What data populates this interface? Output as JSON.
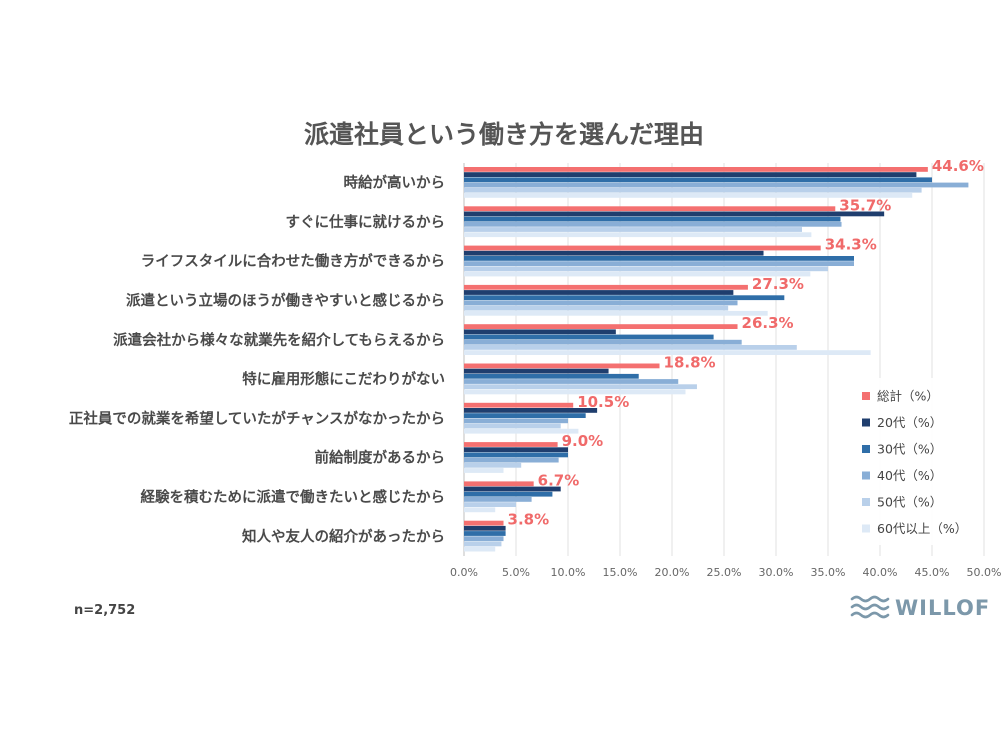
{
  "chart_data": {
    "type": "bar",
    "orientation": "horizontal",
    "title": "派遣社員という働き方を選んだ理由",
    "categories": [
      "時給が高いから",
      "すぐに仕事に就けるから",
      "ライフスタイルに合わせた働き方ができるから",
      "派遣という立場のほうが働きやすいと感じるから",
      "派遣会社から様々な就業先を紹介してもらえるから",
      "特に雇用形態にこだわりがない",
      "正社員での就業を希望していたがチャンスがなかったから",
      "前給制度があるから",
      "経験を積むために派遣で働きたいと感じたから",
      "知人や友人の紹介があったから"
    ],
    "series": [
      {
        "name": "総計（%）",
        "color": "#f47070",
        "values": [
          44.6,
          35.7,
          34.3,
          27.3,
          26.3,
          18.8,
          10.5,
          9.0,
          6.7,
          3.8
        ]
      },
      {
        "name": "20代（%）",
        "color": "#1f3e6e",
        "values": [
          43.5,
          40.4,
          28.8,
          25.9,
          14.6,
          13.9,
          12.8,
          10.0,
          9.3,
          4.0
        ]
      },
      {
        "name": "30代（%）",
        "color": "#2f6ea8",
        "values": [
          45.0,
          36.2,
          37.5,
          30.8,
          24.0,
          16.8,
          11.7,
          10.0,
          8.5,
          4.0
        ]
      },
      {
        "name": "40代（%）",
        "color": "#89aed6",
        "values": [
          48.5,
          36.3,
          37.5,
          26.3,
          26.7,
          20.6,
          10.0,
          9.1,
          6.5,
          3.8
        ]
      },
      {
        "name": "50代（%）",
        "color": "#b9d0ea",
        "values": [
          44.0,
          32.5,
          35.0,
          25.4,
          32.0,
          22.4,
          9.3,
          5.5,
          5.0,
          3.6
        ]
      },
      {
        "name": "60代以上（%）",
        "color": "#dde9f6",
        "values": [
          43.1,
          33.4,
          33.3,
          29.2,
          39.1,
          21.3,
          11.0,
          3.8,
          3.0,
          3.0
        ]
      }
    ],
    "data_labels": [
      "44.6%",
      "35.7%",
      "34.3%",
      "27.3%",
      "26.3%",
      "18.8%",
      "10.5%",
      "9.0%",
      "6.7%",
      "3.8%"
    ],
    "xlim": [
      0,
      50
    ],
    "xticks": [
      "0.0%",
      "5.0%",
      "10.0%",
      "15.0%",
      "20.0%",
      "25.0%",
      "30.0%",
      "35.0%",
      "40.0%",
      "45.0%",
      "50.0%"
    ],
    "grid": true,
    "legend_position": "bottom-right",
    "note": "n=2,752"
  },
  "logo": {
    "text": "WILLOF",
    "color": "#7c98aa"
  }
}
